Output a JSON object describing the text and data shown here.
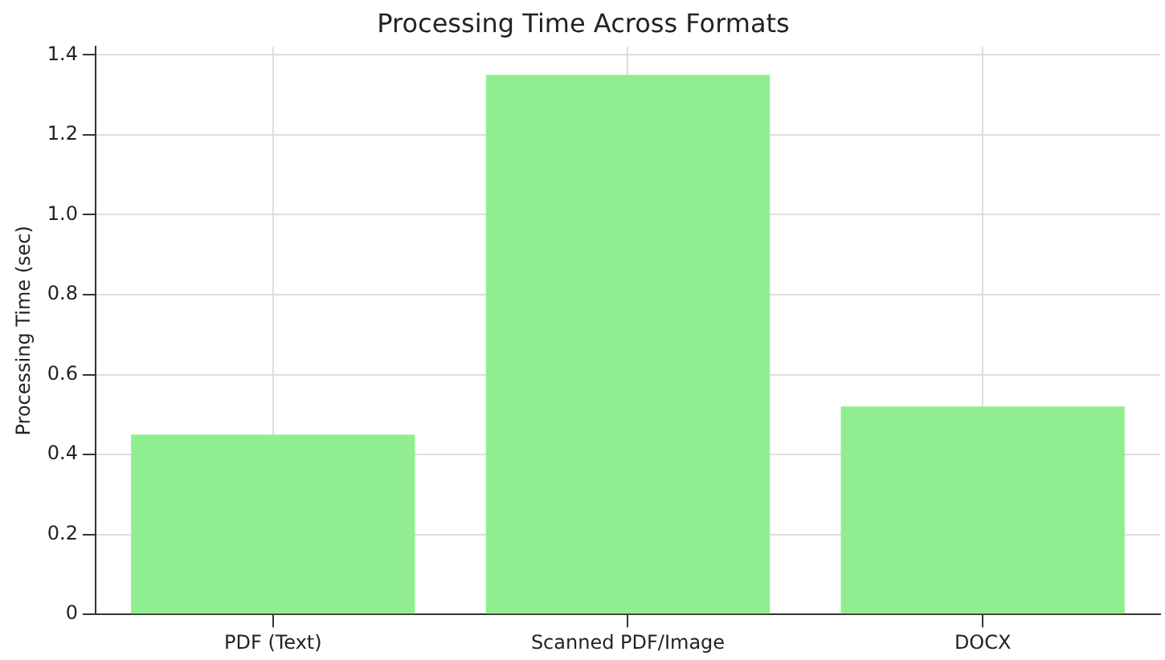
{
  "chart_data": {
    "type": "bar",
    "title": "Processing Time Across Formats",
    "ylabel": "Processing Time (sec)",
    "categories": [
      "PDF (Text)",
      "Scanned PDF/Image",
      "DOCX"
    ],
    "values": [
      0.45,
      1.35,
      0.52
    ],
    "color": "#90ee90",
    "ylim": [
      0,
      1.42
    ],
    "yticks": [
      0,
      {
        "value": 0.2,
        "label": "0.2"
      },
      {
        "value": 0.4,
        "label": "0.4"
      },
      {
        "value": 0.6,
        "label": "0.6"
      },
      {
        "value": 0.8,
        "label": "0.8"
      },
      {
        "value": 1.0,
        "label": "1.0"
      },
      {
        "value": 1.2,
        "label": "1.2"
      },
      {
        "value": 1.4,
        "label": "1.4"
      }
    ],
    "grid": true
  }
}
